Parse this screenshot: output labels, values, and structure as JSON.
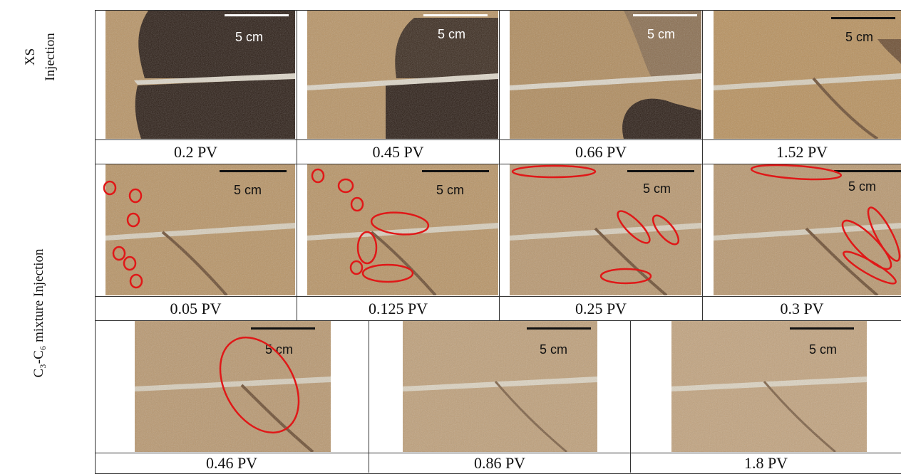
{
  "row_labels": {
    "xs_line1": "XS",
    "xs_line2": "Injection",
    "mix": "C₃-C₆ mixture Injection"
  },
  "scale_label": "5 cm",
  "rows": [
    {
      "name": "xs",
      "cells": [
        {
          "caption": "0.2 PV"
        },
        {
          "caption": "0.45 PV"
        },
        {
          "caption": "0.66 PV"
        },
        {
          "caption": "1.52 PV"
        }
      ]
    },
    {
      "name": "mix-top",
      "cells": [
        {
          "caption": "0.05 PV"
        },
        {
          "caption": "0.125 PV"
        },
        {
          "caption": "0.25 PV"
        },
        {
          "caption": "0.3 PV"
        }
      ]
    },
    {
      "name": "mix-bottom",
      "cells": [
        {
          "caption": "0.46 PV"
        },
        {
          "caption": "0.86 PV"
        },
        {
          "caption": "1.8 PV"
        }
      ]
    }
  ],
  "colors": {
    "sand": "#b89466",
    "sand_dark": "#8f7048",
    "dark_fluid": "#2b1d15",
    "annotation": "#e01818",
    "white_bar": "#ffffff",
    "black_bar": "#111111"
  }
}
